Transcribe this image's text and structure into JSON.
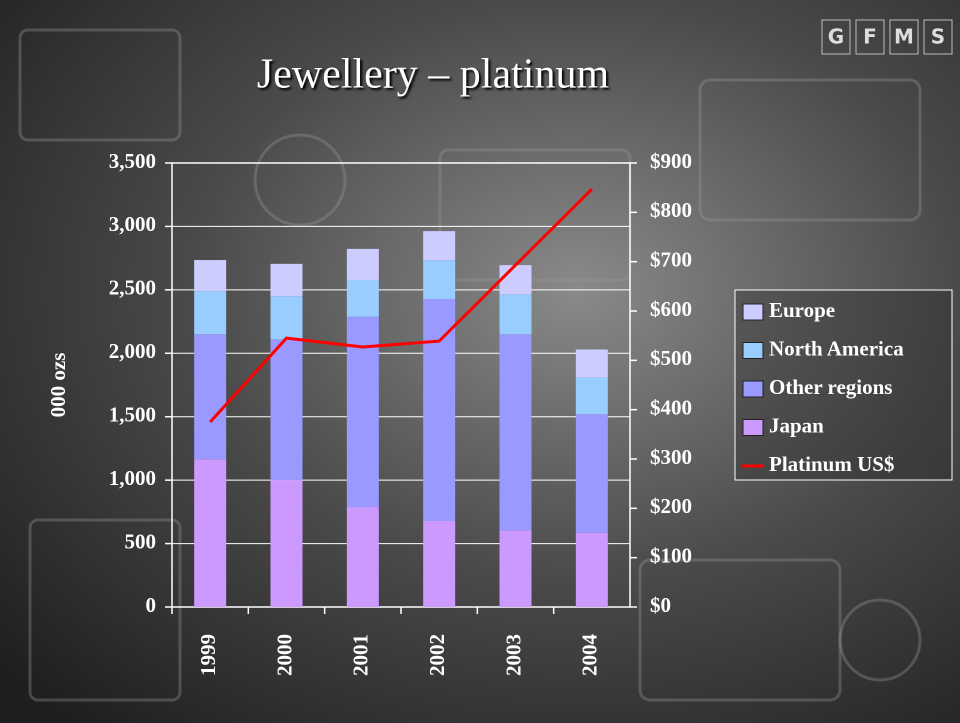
{
  "logo": [
    "G",
    "F",
    "M",
    "S"
  ],
  "chart_data": {
    "type": "bar",
    "stacked": true,
    "title": "Jewellery – platinum",
    "y_label": "000 ozs",
    "categories": [
      "1999",
      "2000",
      "2001",
      "2002",
      "2003",
      "2004"
    ],
    "series": [
      {
        "name": "Japan",
        "color": "#cc99ff",
        "values": [
          1165,
          1000,
          788,
          678,
          605,
          585
        ]
      },
      {
        "name": "Other regions",
        "color": "#9999ff",
        "values": [
          985,
          1110,
          1500,
          1750,
          1545,
          935
        ]
      },
      {
        "name": "North America",
        "color": "#99ccff",
        "values": [
          340,
          340,
          290,
          305,
          315,
          290
        ]
      },
      {
        "name": "Europe",
        "color": "#ccccff",
        "values": [
          245,
          255,
          245,
          230,
          230,
          220
        ]
      },
      {
        "name": "Platinum US$",
        "type": "line",
        "axis": "y2",
        "color": "#ff0000",
        "values": [
          375,
          545,
          527,
          539,
          693,
          847
        ]
      }
    ],
    "ylim": [
      0,
      3500
    ],
    "yticks": [
      0,
      500,
      {
        "value": 1000,
        "label": "1,000"
      },
      {
        "value": 1500,
        "label": "1,500"
      },
      {
        "value": 2000,
        "label": "2,000"
      },
      {
        "value": 2500,
        "label": "2,500"
      },
      {
        "value": 3000,
        "label": "3,000"
      },
      {
        "value": 3500,
        "label": "3,500"
      }
    ],
    "y2lim": [
      0,
      900
    ],
    "y2ticks": [
      {
        "value": 0,
        "label": "$0"
      },
      {
        "value": 100,
        "label": "$100"
      },
      {
        "value": 200,
        "label": "$200"
      },
      {
        "value": 300,
        "label": "$300"
      },
      {
        "value": 400,
        "label": "$400"
      },
      {
        "value": 500,
        "label": "$500"
      },
      {
        "value": 600,
        "label": "$600"
      },
      {
        "value": 700,
        "label": "$700"
      },
      {
        "value": 800,
        "label": "$800"
      },
      {
        "value": 900,
        "label": "$900"
      }
    ],
    "grid": true,
    "legend": "right"
  }
}
